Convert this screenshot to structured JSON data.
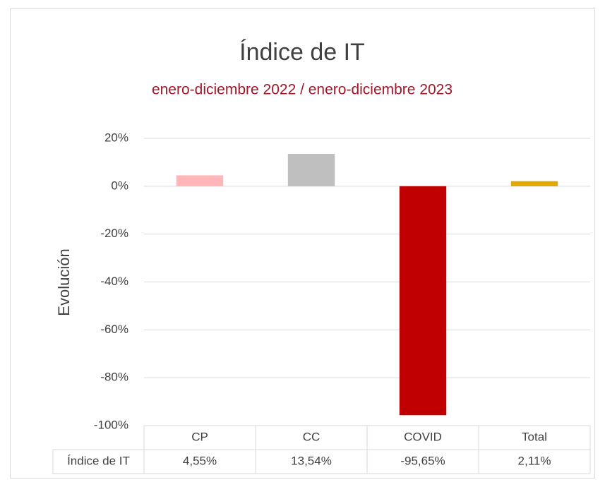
{
  "chart_data": {
    "type": "bar",
    "title": "Índice de IT",
    "subtitle": "enero-diciembre 2022 / enero-diciembre 2023",
    "y_axis_label": "Evolución",
    "categories": [
      "CP",
      "CC",
      "COVID",
      "Total"
    ],
    "series": [
      {
        "name": "Índice de IT",
        "colors": [
          "#ffb6b9",
          "#bfbfbf",
          "#c00000",
          "#e0a800"
        ],
        "values": [
          4.55,
          13.54,
          -95.65,
          2.11
        ],
        "value_labels": [
          "4,55%",
          "13,54%",
          "-95,65%",
          "2,11%"
        ]
      }
    ],
    "ylim": [
      -100,
      20
    ],
    "yticks": [
      {
        "value": -100,
        "label": "-100%"
      },
      {
        "value": -80,
        "label": "-80%"
      },
      {
        "value": -60,
        "label": "-60%"
      },
      {
        "value": -40,
        "label": "-40%"
      },
      {
        "value": -20,
        "label": "-20%"
      },
      {
        "value": 0,
        "label": "0%"
      },
      {
        "value": 20,
        "label": "20%"
      }
    ],
    "grid": true,
    "data_table": true
  }
}
